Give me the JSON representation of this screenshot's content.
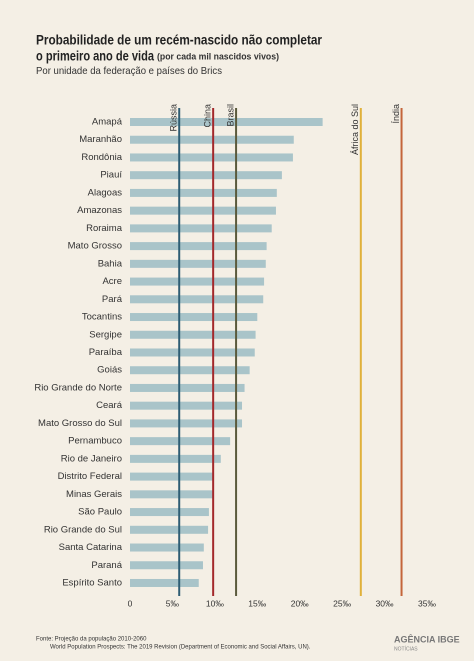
{
  "chart_data": {
    "type": "bar",
    "orientation": "horizontal",
    "title": [
      "Probabilidade de um recém-nascido não completar",
      "o primeiro ano de vida"
    ],
    "title_note": "(por cada mil nascidos vivos)",
    "subtitle": "Por unidade da federação e países do Brics",
    "categories": [
      "Amapá",
      "Maranhão",
      "Rondônia",
      "Piauí",
      "Alagoas",
      "Amazonas",
      "Roraima",
      "Mato Grosso",
      "Bahia",
      "Acre",
      "Pará",
      "Tocantins",
      "Sergipe",
      "Paraíba",
      "Goiás",
      "Rio Grande do Norte",
      "Ceará",
      "Mato Grosso do Sul",
      "Pernambuco",
      "Rio de Janeiro",
      "Distrito Federal",
      "Minas Gerais",
      "São Paulo",
      "Rio Grande do Sul",
      "Santa Catarina",
      "Paraná",
      "Espírito Santo"
    ],
    "values": [
      22.7,
      19.3,
      19.2,
      17.9,
      17.3,
      17.2,
      16.7,
      16.1,
      16.0,
      15.8,
      15.7,
      15.0,
      14.8,
      14.7,
      14.1,
      13.5,
      13.2,
      13.2,
      11.8,
      10.7,
      9.9,
      9.8,
      9.3,
      9.2,
      8.7,
      8.6,
      8.1
    ],
    "color": "#a9c4c9",
    "reference_lines": [
      {
        "name": "Rússia",
        "value": 5.8,
        "color": "#2e5d73"
      },
      {
        "name": "China",
        "value": 9.8,
        "color": "#a3282b"
      },
      {
        "name": "Brasil",
        "value": 12.5,
        "color": "#5a5a3c"
      },
      {
        "name": "África do Sul",
        "value": 27.2,
        "color": "#e0b13a"
      },
      {
        "name": "Índia",
        "value": 32.0,
        "color": "#c4653a"
      }
    ],
    "xlim": [
      0,
      35
    ],
    "xticks": [
      0,
      {
        "value": 5,
        "label": "5‰"
      },
      {
        "value": 10,
        "label": "10‰"
      },
      {
        "value": 15,
        "label": "15‰"
      },
      {
        "value": 20,
        "label": "20‰"
      },
      {
        "value": 25,
        "label": "25‰"
      },
      {
        "value": 30,
        "label": "30‰"
      },
      {
        "value": 35,
        "label": "35‰"
      }
    ],
    "source": [
      "Fonte: Projeção da população 2010-2060",
      "World Population Prospects: The 2019 Revision (Department of Economic and Social Affairs, UN)."
    ],
    "logo": {
      "text": "AGÊNCIA IBGE",
      "sub": "NOTÍCIAS"
    }
  }
}
